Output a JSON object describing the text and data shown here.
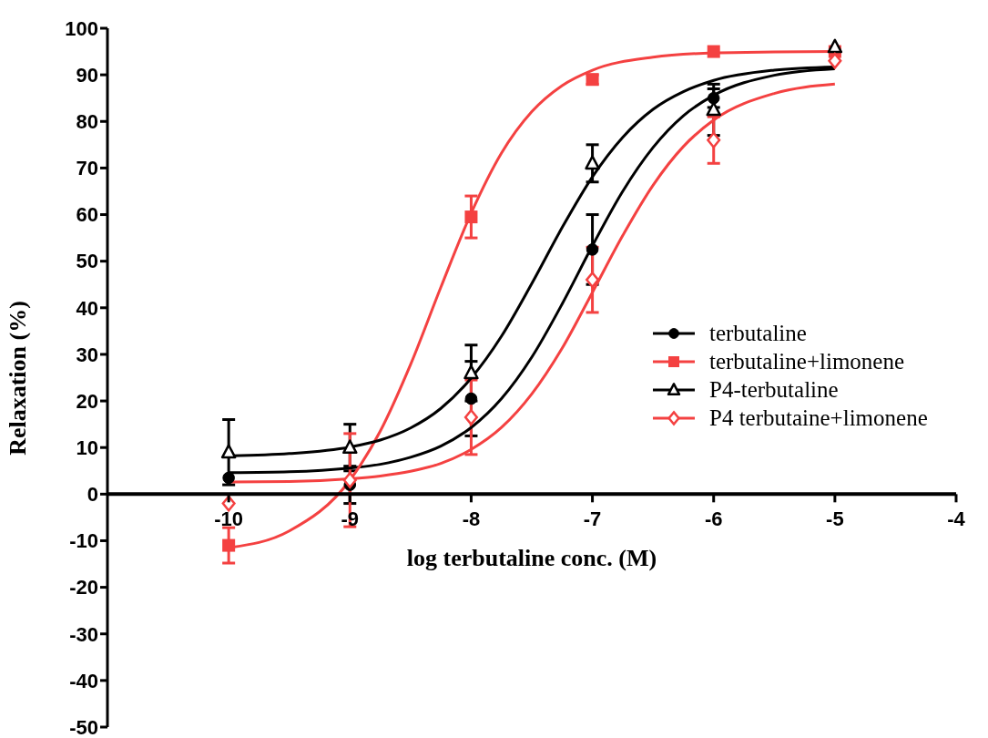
{
  "chart_data": {
    "type": "scatter",
    "xlabel": "log terbutaline conc. (M)",
    "ylabel": "Relaxation (%)",
    "xlim": [
      -11,
      -4
    ],
    "xticks": [
      -10,
      -9,
      -8,
      -7,
      -6,
      -5,
      -4
    ],
    "ylim": [
      -50,
      100
    ],
    "yticks": [
      -50,
      -40,
      -30,
      -20,
      -10,
      0,
      10,
      20,
      30,
      40,
      50,
      60,
      70,
      80,
      90,
      100
    ],
    "grid": false,
    "legend": "right",
    "x": [
      -10,
      -9,
      -8,
      -7,
      -6,
      -5
    ],
    "series": [
      {
        "name": "terbutaline",
        "marker": "circle",
        "color": "#000000",
        "values": [
          3.5,
          2,
          20.5,
          52.5,
          85,
          null
        ],
        "errors": [
          null,
          4,
          8,
          7.5,
          2,
          null
        ]
      },
      {
        "name": "terbutaline+limonene",
        "marker": "square",
        "color": "#f44141",
        "values": [
          -11,
          null,
          59.5,
          89,
          95,
          95
        ],
        "errors": [
          3.8,
          null,
          4.5,
          1,
          null,
          null
        ]
      },
      {
        "name": "P4-terbutaline",
        "marker": "triangle",
        "color": "#000000",
        "values": [
          9,
          10,
          26,
          71,
          82.5,
          96
        ],
        "errors": [
          7,
          5,
          6,
          4,
          5.5,
          null
        ]
      },
      {
        "name": "P4 terbutaine+limonene",
        "marker": "diamond",
        "color": "#f44141",
        "values": [
          -2,
          3,
          16.5,
          46,
          76,
          93
        ],
        "errors": [
          null,
          10,
          8,
          7,
          5,
          null
        ]
      },
      {
        "type": "line",
        "marker": "none",
        "color": "#000000",
        "x": [
          -10,
          -9.5,
          -9,
          -8.75,
          -8.5,
          -8.25,
          -8,
          -7.75,
          -7.5,
          -7.25,
          -7,
          -6.75,
          -6.5,
          -6.25,
          -6,
          -5.5,
          -5
        ],
        "values": [
          4.6,
          4.8,
          5.6,
          6.4,
          7.9,
          10.3,
          14.3,
          20.5,
          29.4,
          40.8,
          53.3,
          65,
          74.4,
          81.2,
          85.6,
          89.9,
          91.3
        ]
      },
      {
        "type": "line",
        "marker": "none",
        "color": "#f44141",
        "x": [
          -10,
          -9.5,
          -9,
          -8.75,
          -8.5,
          -8.25,
          -8,
          -7.75,
          -7.5,
          -7.25,
          -7,
          -6.5,
          -6,
          -5.5,
          -5
        ],
        "values": [
          -11.5,
          -7.9,
          3,
          13.5,
          27.8,
          44.4,
          60.3,
          73.2,
          82.1,
          87.7,
          91,
          93.8,
          94.7,
          94.9,
          95
        ]
      },
      {
        "type": "line",
        "marker": "none",
        "color": "#000000",
        "x": [
          -10,
          -9.5,
          -9,
          -8.75,
          -8.5,
          -8.25,
          -8,
          -7.75,
          -7.5,
          -7.25,
          -7,
          -6.75,
          -6.5,
          -6.25,
          -6,
          -5.5,
          -5
        ],
        "values": [
          8.2,
          8.7,
          10.1,
          11.6,
          14.2,
          18.4,
          24.9,
          33.9,
          45.2,
          57.2,
          68.1,
          76.6,
          82.6,
          86.4,
          88.8,
          91,
          91.7
        ]
      },
      {
        "type": "line",
        "marker": "none",
        "color": "#f44141",
        "x": [
          -10,
          -9.5,
          -9,
          -8.75,
          -8.5,
          -8.25,
          -8,
          -7.75,
          -7.5,
          -7.25,
          -7,
          -6.75,
          -6.5,
          -6.25,
          -6,
          -5.5,
          -5
        ],
        "values": [
          2.6,
          2.7,
          3.3,
          3.9,
          4.9,
          6.6,
          9.6,
          14.3,
          21.5,
          31.3,
          43.3,
          55.5,
          66.3,
          74.6,
          80.3,
          86,
          88
        ]
      }
    ]
  }
}
